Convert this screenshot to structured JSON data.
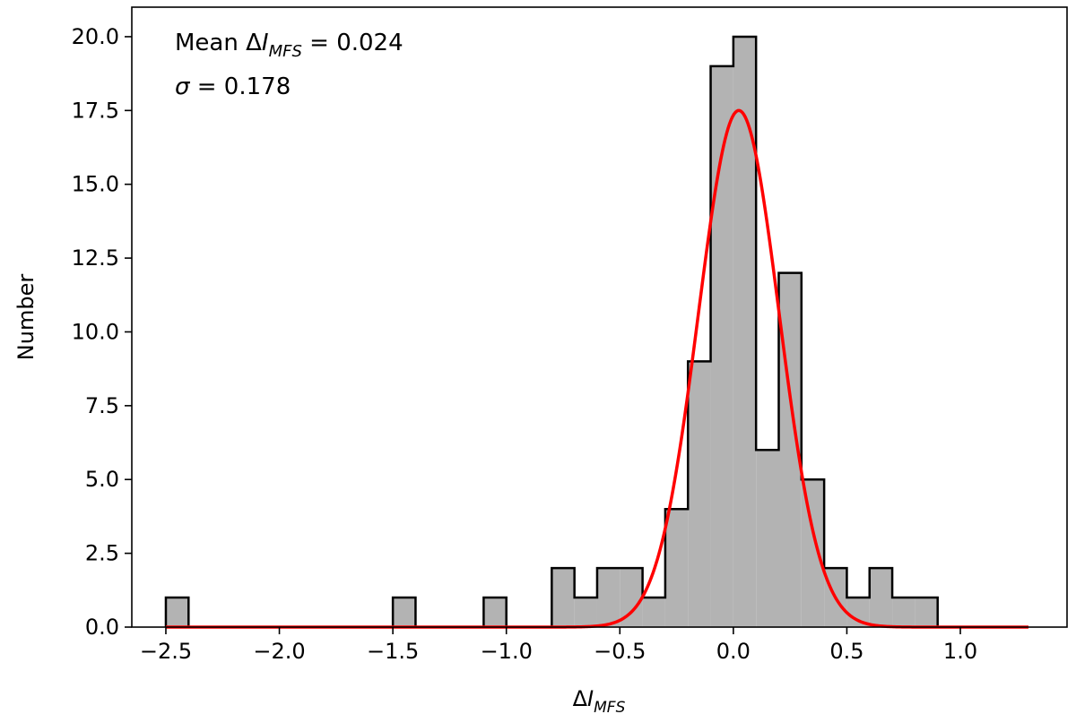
{
  "chart_data": {
    "type": "bar",
    "subtype": "histogram-with-gaussian-fit",
    "xlabel": {
      "prefix": "Δ",
      "var": "I",
      "sub": "MFS"
    },
    "ylabel": "Number",
    "xlim": [
      -2.65,
      1.47
    ],
    "ylim": [
      0,
      21
    ],
    "xticks": [
      -2.5,
      -2.0,
      -1.5,
      -1.0,
      -0.5,
      0.0,
      0.5,
      1.0
    ],
    "xtick_labels": [
      "−2.5",
      "−2.0",
      "−1.5",
      "−1.0",
      "−0.5",
      "0.0",
      "0.5",
      "1.0"
    ],
    "yticks": [
      0,
      2.5,
      5,
      7.5,
      10,
      12.5,
      15,
      17.5,
      20
    ],
    "ytick_labels": [
      "0.0",
      "2.5",
      "5.0",
      "7.5",
      "10.0",
      "12.5",
      "15.0",
      "17.5",
      "20.0"
    ],
    "bin_edges": [
      -2.5,
      -2.4,
      -2.3,
      -2.2,
      -2.1,
      -2.0,
      -1.9,
      -1.8,
      -1.7,
      -1.6,
      -1.5,
      -1.4,
      -1.3,
      -1.2,
      -1.1,
      -1.0,
      -0.9,
      -0.8,
      -0.7,
      -0.6,
      -0.5,
      -0.4,
      -0.3,
      -0.2,
      -0.1,
      0.0,
      0.1,
      0.2,
      0.3,
      0.4,
      0.5,
      0.6,
      0.7,
      0.8,
      0.9
    ],
    "counts": [
      1,
      0,
      0,
      0,
      0,
      0,
      0,
      0,
      0,
      0,
      1,
      0,
      0,
      0,
      1,
      0,
      0,
      2,
      1,
      2,
      2,
      1,
      4,
      9,
      19,
      20,
      6,
      12,
      5,
      2,
      1,
      2,
      1,
      1
    ],
    "gaussian_fit": {
      "mean": 0.024,
      "sigma": 0.178,
      "peak": 17.5,
      "x_range": [
        -2.5,
        1.3
      ]
    },
    "bar_color": "#b3b3b3",
    "edge_color": "#000000",
    "fit_color": "#ff0000",
    "annotations": {
      "mean_text": {
        "prefix": "Mean Δ",
        "var": "I",
        "sub": "MFS",
        "suffix": " = 0.024"
      },
      "sigma_text": {
        "symbol": "σ",
        "suffix": " = 0.178"
      }
    },
    "grid": false,
    "legend": "none"
  }
}
